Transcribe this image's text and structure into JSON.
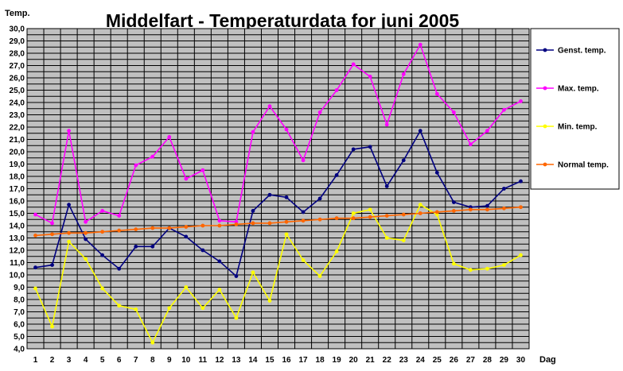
{
  "chart_data": {
    "type": "line",
    "title": "Middelfart - Temperaturdata for juni 2005",
    "ylabel": "Temp.",
    "xlabel": "Dag",
    "ylim": [
      4.0,
      30.0
    ],
    "ytick_step": 0.5,
    "ylabel_step": 1.0,
    "grid": true,
    "legend_position": "right",
    "plot_background": "#c0c0c0",
    "x": [
      1,
      2,
      3,
      4,
      5,
      6,
      7,
      8,
      9,
      10,
      11,
      12,
      13,
      14,
      15,
      16,
      17,
      18,
      19,
      20,
      21,
      22,
      23,
      24,
      25,
      26,
      27,
      28,
      29,
      30
    ],
    "series": [
      {
        "name": "Genst. temp.",
        "color": "#000080",
        "values": [
          10.6,
          10.8,
          15.7,
          12.9,
          11.6,
          10.5,
          12.3,
          12.3,
          13.8,
          13.1,
          12.0,
          11.1,
          9.9,
          15.2,
          16.5,
          16.3,
          15.1,
          16.2,
          18.1,
          20.2,
          20.4,
          17.2,
          19.3,
          21.7,
          18.3,
          15.9,
          15.5,
          15.6,
          17.0,
          17.6
        ]
      },
      {
        "name": "Max. temp.",
        "color": "#ff00ff",
        "values": [
          14.9,
          14.2,
          21.7,
          14.3,
          15.2,
          14.8,
          18.9,
          19.6,
          21.2,
          17.8,
          18.5,
          14.4,
          14.3,
          21.6,
          23.7,
          21.8,
          19.3,
          23.2,
          25.0,
          27.1,
          26.1,
          22.2,
          26.3,
          28.7,
          24.7,
          23.2,
          20.6,
          21.7,
          23.4,
          24.1
        ]
      },
      {
        "name": "Min. temp.",
        "color": "#ffff00",
        "values": [
          8.9,
          5.8,
          12.7,
          11.3,
          8.9,
          7.5,
          7.2,
          4.5,
          7.3,
          9.0,
          7.3,
          8.8,
          6.5,
          10.2,
          7.9,
          13.3,
          11.2,
          9.9,
          11.9,
          15.0,
          15.3,
          13.0,
          12.8,
          15.7,
          14.9,
          10.9,
          10.4,
          10.5,
          10.8,
          11.6
        ]
      },
      {
        "name": "Normal temp.",
        "color": "#ff6600",
        "values": [
          13.2,
          13.3,
          13.4,
          13.4,
          13.5,
          13.6,
          13.7,
          13.8,
          13.8,
          13.9,
          14.0,
          14.0,
          14.1,
          14.2,
          14.2,
          14.3,
          14.4,
          14.5,
          14.6,
          14.6,
          14.7,
          14.8,
          14.9,
          15.0,
          15.1,
          15.2,
          15.3,
          15.3,
          15.4,
          15.5
        ]
      }
    ]
  }
}
